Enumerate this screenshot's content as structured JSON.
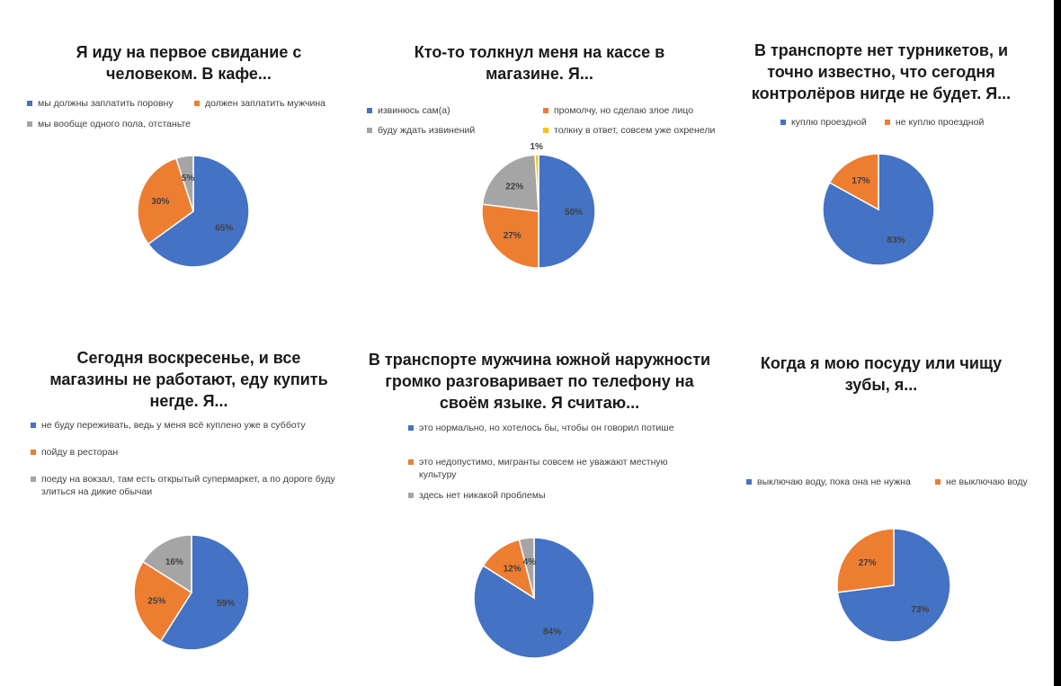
{
  "chart_data": [
    {
      "type": "pie",
      "title": "Я иду на первое свидание с\nчеловеком. В кафе...",
      "categories": [
        "мы должны заплатить поровну",
        "должен заплатить мужчина",
        "мы вообще одного пола, отстаньте"
      ],
      "values": [
        65,
        30,
        5
      ],
      "labels": [
        "65%",
        "30%",
        "5%"
      ],
      "colors": [
        "#4472C4",
        "#ED7D31",
        "#A5A5A5"
      ],
      "legend": "top"
    },
    {
      "type": "pie",
      "title": "Кто-то толкнул меня на кассе в\nмагазине. Я...",
      "categories": [
        "извинюсь сам(а)",
        "промолчу, но сделаю злое лицо",
        "буду ждать извинений",
        "толкну в ответ, совсем уже охренели"
      ],
      "values": [
        50,
        27,
        22,
        1
      ],
      "labels": [
        "50%",
        "27%",
        "22%",
        "1%"
      ],
      "colors": [
        "#4472C4",
        "#ED7D31",
        "#A5A5A5",
        "#FFC000"
      ],
      "legend": "top"
    },
    {
      "type": "pie",
      "title": "В транспорте нет турникетов, и\nточно известно, что сегодня\nконтролёров нигде не будет. Я...",
      "categories": [
        "куплю проездной",
        "не куплю проездной"
      ],
      "values": [
        83,
        17
      ],
      "labels": [
        "83%",
        "17%"
      ],
      "colors": [
        "#4472C4",
        "#ED7D31"
      ],
      "legend": "top"
    },
    {
      "type": "pie",
      "title": "Сегодня воскресенье, и все\nмагазины не работают, еду купить\nнегде. Я...",
      "categories": [
        "не буду переживать, ведь у меня всё куплено уже в субботу",
        "пойду в ресторан",
        "поеду на вокзал, там есть открытый супермаркет, а по дороге буду злиться на дикие обычаи"
      ],
      "values": [
        59,
        25,
        16
      ],
      "labels": [
        "59%",
        "25%",
        "16%"
      ],
      "colors": [
        "#4472C4",
        "#ED7D31",
        "#A5A5A5"
      ],
      "legend": "top"
    },
    {
      "type": "pie",
      "title": "В транспорте мужчина южной наружности\nгромко разговаривает по телефону на\nсвоём языке. Я считаю...",
      "categories": [
        "это нормально, но хотелось бы, чтобы он говорил потише",
        "это недопустимо, мигранты совсем не уважают местную культуру",
        "здесь нет никакой проблемы"
      ],
      "values": [
        84,
        12,
        4
      ],
      "labels": [
        "84%",
        "12%",
        "4%"
      ],
      "colors": [
        "#4472C4",
        "#ED7D31",
        "#A5A5A5"
      ],
      "legend": "top"
    },
    {
      "type": "pie",
      "title": "Когда я мою посуду или чищу\nзубы, я...",
      "categories": [
        "выключаю воду, пока она не нужна",
        "не выключаю воду"
      ],
      "values": [
        73,
        27
      ],
      "labels": [
        "73%",
        "27%"
      ],
      "colors": [
        "#4472C4",
        "#ED7D31"
      ],
      "legend": "top"
    }
  ]
}
